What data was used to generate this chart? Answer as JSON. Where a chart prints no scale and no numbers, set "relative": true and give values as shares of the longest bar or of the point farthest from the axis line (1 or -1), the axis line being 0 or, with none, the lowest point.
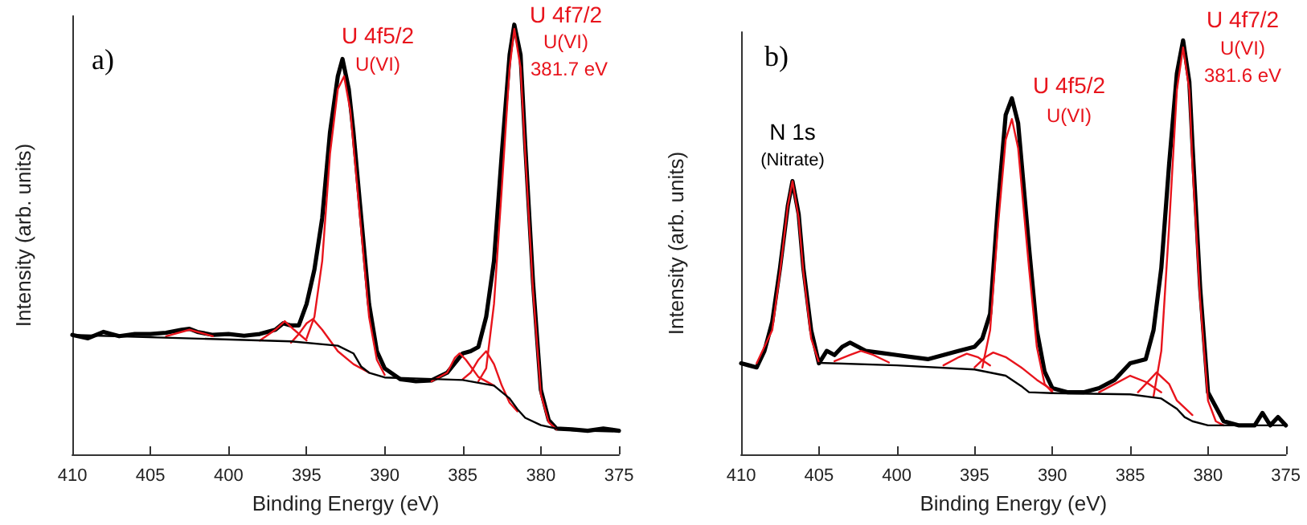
{
  "chart_data": [
    {
      "type": "line",
      "relative": true,
      "xlabel": "Binding Energy (eV)",
      "ylabel": "Intensity (arb. units)",
      "xlim": [
        410,
        375
      ],
      "xticks": [
        410,
        405,
        400,
        395,
        390,
        385,
        380,
        375
      ],
      "tick_labels": "x",
      "marker": "none",
      "line_style": "solid",
      "series": [
        {
          "color": "#000000",
          "x": [
            410,
            409,
            408,
            407,
            406,
            405,
            404,
            403,
            402.5,
            402,
            401,
            400,
            399,
            398,
            397,
            396.5,
            396,
            395.5,
            395,
            394.5,
            394,
            393.5,
            393,
            392.7,
            392.3,
            392,
            391.5,
            391,
            390.5,
            390,
            389,
            388,
            387,
            386,
            385,
            384.5,
            384,
            383.5,
            383,
            382.5,
            382,
            381.7,
            381.3,
            381,
            380.5,
            380,
            379.5,
            379,
            378,
            377,
            376,
            375
          ],
          "values": [
            0.278,
            0.27,
            0.285,
            0.275,
            0.28,
            0.28,
            0.283,
            0.29,
            0.292,
            0.285,
            0.278,
            0.28,
            0.276,
            0.28,
            0.29,
            0.305,
            0.3,
            0.3,
            0.35,
            0.43,
            0.55,
            0.75,
            0.88,
            0.92,
            0.85,
            0.75,
            0.55,
            0.35,
            0.24,
            0.2,
            0.175,
            0.17,
            0.172,
            0.19,
            0.235,
            0.24,
            0.25,
            0.32,
            0.45,
            0.7,
            0.93,
            1.0,
            0.93,
            0.72,
            0.4,
            0.15,
            0.08,
            0.06,
            0.058,
            0.055,
            0.06,
            0.055
          ]
        },
        {
          "color": "#e8141c",
          "x": [
            384,
            383.5,
            383,
            382.5,
            382,
            381.7,
            381.3,
            381,
            380.5,
            380,
            379.5,
            379
          ],
          "values": [
            0.17,
            0.2,
            0.35,
            0.62,
            0.9,
            0.99,
            0.9,
            0.7,
            0.38,
            0.14,
            0.075,
            0.058
          ]
        },
        {
          "color": "#e8141c",
          "x": [
            385,
            384.5,
            384,
            383.5,
            383,
            382.5,
            382,
            381.5
          ],
          "values": [
            0.175,
            0.19,
            0.22,
            0.24,
            0.21,
            0.16,
            0.12,
            0.1
          ]
        },
        {
          "color": "#e8141c",
          "x": [
            387,
            386,
            385.5,
            385.2,
            384.8,
            384,
            383
          ],
          "values": [
            0.17,
            0.19,
            0.225,
            0.235,
            0.22,
            0.18,
            0.16
          ]
        },
        {
          "color": "#e8141c",
          "x": [
            395,
            394.5,
            394,
            393.5,
            393,
            392.6,
            392.2,
            391.5,
            391,
            390.5,
            390
          ],
          "values": [
            0.27,
            0.32,
            0.45,
            0.7,
            0.85,
            0.88,
            0.8,
            0.52,
            0.32,
            0.22,
            0.185
          ]
        },
        {
          "color": "#e8141c",
          "x": [
            396,
            395.5,
            395,
            394.6,
            394,
            393,
            392,
            391
          ],
          "values": [
            0.26,
            0.28,
            0.305,
            0.315,
            0.29,
            0.24,
            0.21,
            0.19
          ]
        },
        {
          "color": "#e8141c",
          "x": [
            398,
            397,
            396.4,
            395.8,
            395
          ],
          "values": [
            0.265,
            0.29,
            0.31,
            0.29,
            0.265
          ]
        },
        {
          "color": "#e8141c",
          "x": [
            404,
            402.5,
            401
          ],
          "values": [
            0.275,
            0.29,
            0.275
          ]
        },
        {
          "color": "#000000",
          "x": [
            410,
            396,
            393,
            392,
            391.5,
            391,
            390,
            385,
            383,
            382,
            381.5,
            381,
            380,
            379,
            378,
            375
          ],
          "values": [
            0.278,
            0.263,
            0.253,
            0.235,
            0.204,
            0.19,
            0.179,
            0.173,
            0.16,
            0.13,
            0.105,
            0.085,
            0.068,
            0.06,
            0.056,
            0.053
          ]
        }
      ],
      "annotations": [
        "a)",
        "U 4f5/2",
        "U(VI)",
        "U 4f7/2",
        "U(VI)",
        "381.7 eV"
      ]
    },
    {
      "type": "line",
      "relative": true,
      "xlabel": "Binding Energy (eV)",
      "ylabel": "Intensity (arb. units)",
      "xlim": [
        410,
        375
      ],
      "xticks": [
        410,
        405,
        400,
        395,
        390,
        385,
        380,
        375
      ],
      "tick_labels": "x",
      "marker": "none",
      "line_style": "solid",
      "series": [
        {
          "color": "#000000",
          "x": [
            410,
            409.5,
            409,
            408.5,
            408,
            407.5,
            407,
            406.7,
            406.3,
            406,
            405.5,
            405,
            404.5,
            404,
            403.5,
            403,
            402,
            401,
            400,
            399,
            398,
            397,
            396,
            395,
            394.5,
            394,
            393.5,
            393,
            392.6,
            392.2,
            391.5,
            391,
            390.5,
            390,
            389,
            388,
            387,
            386,
            385,
            384,
            383.5,
            383,
            382.5,
            382,
            381.6,
            381.2,
            381,
            380.5,
            380,
            379,
            378,
            377,
            376.5,
            376,
            375.5,
            375
          ],
          "values": [
            0.22,
            0.215,
            0.21,
            0.25,
            0.32,
            0.45,
            0.6,
            0.66,
            0.58,
            0.45,
            0.3,
            0.22,
            0.25,
            0.24,
            0.26,
            0.27,
            0.25,
            0.245,
            0.24,
            0.235,
            0.23,
            0.24,
            0.25,
            0.26,
            0.28,
            0.34,
            0.6,
            0.82,
            0.86,
            0.8,
            0.5,
            0.3,
            0.2,
            0.16,
            0.15,
            0.15,
            0.16,
            0.18,
            0.22,
            0.23,
            0.3,
            0.45,
            0.7,
            0.92,
            1.0,
            0.9,
            0.75,
            0.4,
            0.15,
            0.08,
            0.07,
            0.07,
            0.1,
            0.07,
            0.09,
            0.07
          ]
        },
        {
          "color": "#e8141c",
          "x": [
            409,
            408,
            407.5,
            407,
            406.7,
            406.3,
            406,
            405.5,
            405
          ],
          "values": [
            0.22,
            0.3,
            0.44,
            0.6,
            0.66,
            0.57,
            0.44,
            0.28,
            0.222
          ]
        },
        {
          "color": "#e8141c",
          "x": [
            404,
            403,
            402.3,
            401.5,
            400.5
          ],
          "values": [
            0.225,
            0.24,
            0.25,
            0.24,
            0.222
          ]
        },
        {
          "color": "#e8141c",
          "x": [
            397,
            396,
            395.5,
            394.8,
            394
          ],
          "values": [
            0.215,
            0.235,
            0.243,
            0.235,
            0.215
          ]
        },
        {
          "color": "#e8141c",
          "x": [
            395,
            394.3,
            393.8,
            393,
            392,
            391,
            390
          ],
          "values": [
            0.21,
            0.235,
            0.246,
            0.235,
            0.21,
            0.18,
            0.155
          ]
        },
        {
          "color": "#e8141c",
          "x": [
            394.5,
            394,
            393.5,
            393,
            392.6,
            392.2,
            391.5,
            391,
            390.5,
            390
          ],
          "values": [
            0.21,
            0.3,
            0.55,
            0.76,
            0.81,
            0.74,
            0.45,
            0.26,
            0.17,
            0.15
          ]
        },
        {
          "color": "#e8141c",
          "x": [
            387,
            386,
            385,
            384,
            383
          ],
          "values": [
            0.15,
            0.17,
            0.19,
            0.175,
            0.15
          ]
        },
        {
          "color": "#e8141c",
          "x": [
            384.5,
            384,
            383.3,
            382.5,
            382,
            381
          ],
          "values": [
            0.15,
            0.17,
            0.198,
            0.17,
            0.13,
            0.095
          ]
        },
        {
          "color": "#e8141c",
          "x": [
            383.5,
            383,
            382.5,
            382,
            381.6,
            381.2,
            381,
            380.5,
            380,
            379.5,
            379
          ],
          "values": [
            0.14,
            0.25,
            0.55,
            0.88,
            0.983,
            0.88,
            0.7,
            0.37,
            0.13,
            0.08,
            0.07
          ]
        },
        {
          "color": "#000000",
          "x": [
            405,
            400,
            395,
            393,
            392,
            391.5,
            390,
            385,
            383,
            382,
            381.5,
            381,
            380,
            379,
            375
          ],
          "values": [
            0.221,
            0.215,
            0.205,
            0.19,
            0.165,
            0.15,
            0.148,
            0.145,
            0.135,
            0.11,
            0.09,
            0.08,
            0.07,
            0.07,
            0.07
          ]
        }
      ],
      "annotations": [
        "b)",
        "N 1s",
        "(Nitrate)",
        "U 4f5/2",
        "U(VI)",
        "U 4f7/2",
        "U(VI)",
        "381.6 eV"
      ]
    }
  ]
}
